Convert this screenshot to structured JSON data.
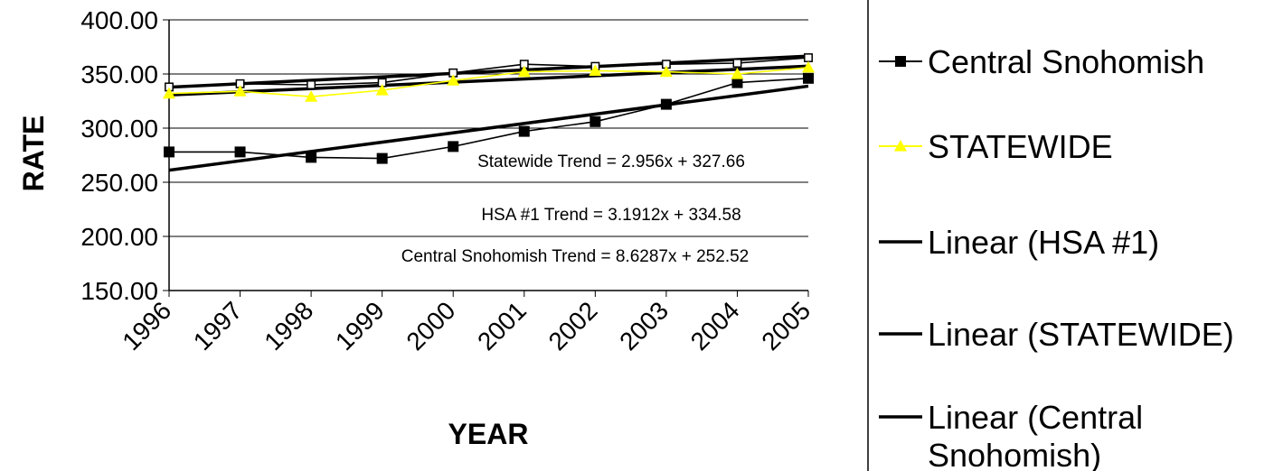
{
  "chart_data": {
    "type": "line",
    "xlabel": "YEAR",
    "ylabel": "RATE",
    "ylim": [
      150,
      400
    ],
    "y_ticks": [
      "150.00",
      "200.00",
      "250.00",
      "300.00",
      "350.00",
      "400.00"
    ],
    "categories": [
      "1996",
      "1997",
      "1998",
      "1999",
      "2000",
      "2001",
      "2002",
      "2003",
      "2004",
      "2005"
    ],
    "series": [
      {
        "key": "hsa",
        "marker": "square-open",
        "color": "#000000",
        "values": [
          338,
          341,
          340,
          342,
          351,
          359,
          357,
          359,
          360,
          365
        ]
      },
      {
        "key": "central",
        "name": "Central Snohomish",
        "marker": "square-filled",
        "color": "#000000",
        "values": [
          278,
          278,
          273,
          272,
          283,
          297,
          306,
          322,
          342,
          346
        ]
      },
      {
        "key": "statewide",
        "name": "STATEWIDE",
        "marker": "triangle",
        "color": "#ffff00",
        "values": [
          332,
          334,
          329,
          335,
          344,
          352,
          353,
          352,
          350,
          356
        ]
      }
    ],
    "trendlines": [
      {
        "name": "Linear (HSA #1)",
        "slope": 3.1912,
        "intercept": 334.58,
        "color": "#000000"
      },
      {
        "name": "Linear (STATEWIDE)",
        "slope": 2.956,
        "intercept": 327.66,
        "color": "#000000"
      },
      {
        "name": "Linear (Central Snohomish)",
        "slope": 8.6287,
        "intercept": 252.52,
        "color": "#000000"
      }
    ],
    "annotations": [
      "Statewide Trend = 2.956x + 327.66",
      "HSA #1 Trend = 3.1912x + 334.58",
      "Central Snohomish Trend = 8.6287x + 252.52"
    ],
    "legend": {
      "position": "right",
      "entries": [
        {
          "lines": [
            "Central Snohomish"
          ],
          "marker": "square-filled",
          "color": "#000000"
        },
        {
          "lines": [
            "STATEWIDE"
          ],
          "marker": "triangle",
          "color": "#ffff00"
        },
        {
          "lines": [
            "Linear (HSA #1)"
          ],
          "marker": "none",
          "color": "#000000"
        },
        {
          "lines": [
            "Linear (STATEWIDE)"
          ],
          "marker": "none",
          "color": "#000000"
        },
        {
          "lines": [
            "Linear (Central",
            "Snohomish)"
          ],
          "marker": "none",
          "color": "#000000"
        }
      ]
    },
    "grid": true
  }
}
